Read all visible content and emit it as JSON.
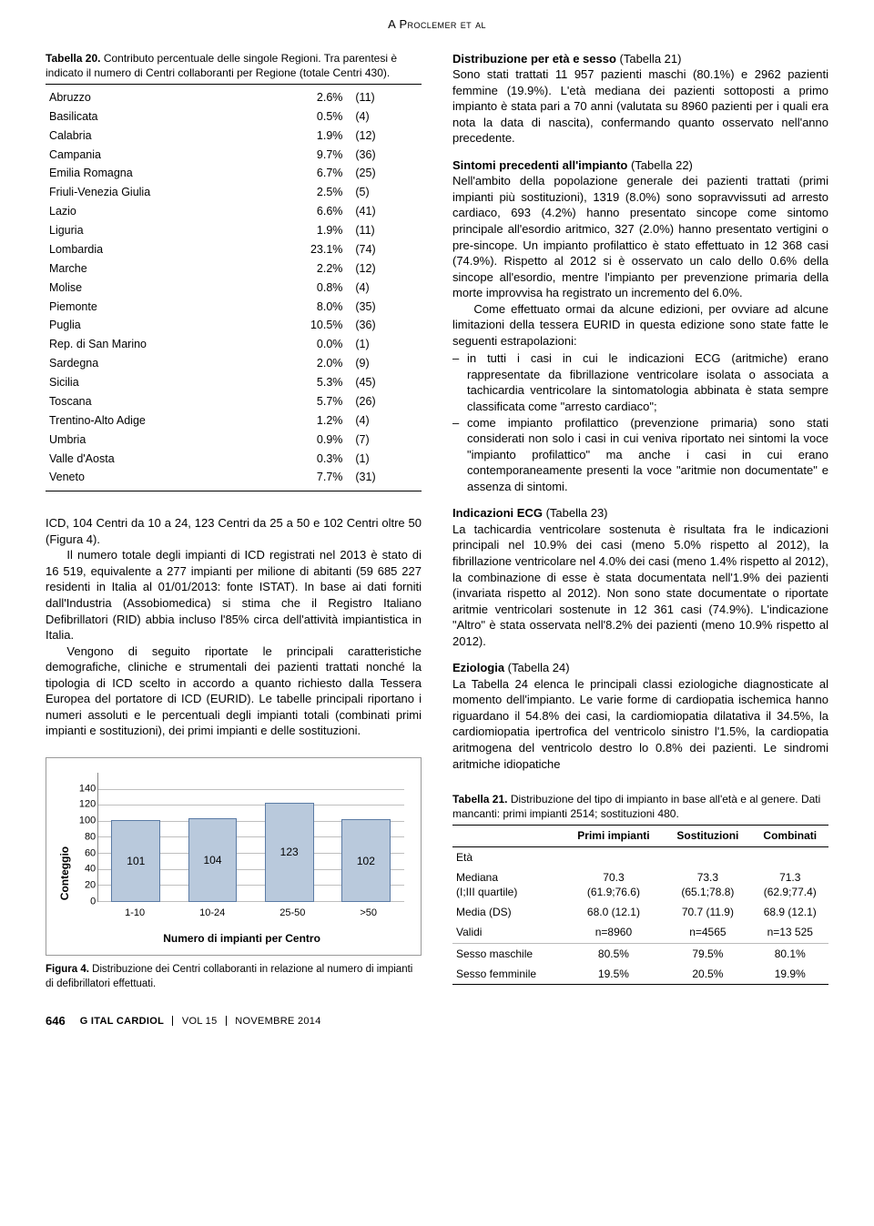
{
  "running_head": "A Proclemer et al",
  "left": {
    "table20": {
      "caption_bold": "Tabella 20.",
      "caption_rest": " Contributo percentuale delle singole Regioni. Tra parentesi è indicato il numero di Centri collaboranti per Regione (totale Centri 430).",
      "rows": [
        {
          "region": "Abruzzo",
          "pct": "2.6%",
          "n": "(11)"
        },
        {
          "region": "Basilicata",
          "pct": "0.5%",
          "n": "(4)"
        },
        {
          "region": "Calabria",
          "pct": "1.9%",
          "n": "(12)"
        },
        {
          "region": "Campania",
          "pct": "9.7%",
          "n": "(36)"
        },
        {
          "region": "Emilia Romagna",
          "pct": "6.7%",
          "n": "(25)"
        },
        {
          "region": "Friuli-Venezia Giulia",
          "pct": "2.5%",
          "n": "(5)"
        },
        {
          "region": "Lazio",
          "pct": "6.6%",
          "n": "(41)"
        },
        {
          "region": "Liguria",
          "pct": "1.9%",
          "n": "(11)"
        },
        {
          "region": "Lombardia",
          "pct": "23.1%",
          "n": "(74)"
        },
        {
          "region": "Marche",
          "pct": "2.2%",
          "n": "(12)"
        },
        {
          "region": "Molise",
          "pct": "0.8%",
          "n": "(4)"
        },
        {
          "region": "Piemonte",
          "pct": "8.0%",
          "n": "(35)"
        },
        {
          "region": "Puglia",
          "pct": "10.5%",
          "n": "(36)"
        },
        {
          "region": "Rep. di San Marino",
          "pct": "0.0%",
          "n": "(1)"
        },
        {
          "region": "Sardegna",
          "pct": "2.0%",
          "n": "(9)"
        },
        {
          "region": "Sicilia",
          "pct": "5.3%",
          "n": "(45)"
        },
        {
          "region": "Toscana",
          "pct": "5.7%",
          "n": "(26)"
        },
        {
          "region": "Trentino-Alto Adige",
          "pct": "1.2%",
          "n": "(4)"
        },
        {
          "region": "Umbria",
          "pct": "0.9%",
          "n": "(7)"
        },
        {
          "region": "Valle d'Aosta",
          "pct": "0.3%",
          "n": "(1)"
        },
        {
          "region": "Veneto",
          "pct": "7.7%",
          "n": "(31)"
        }
      ]
    },
    "para1": "ICD, 104 Centri da 10 a 24, 123 Centri da 25 a 50 e 102 Centri oltre 50 (Figura 4).",
    "para2": "Il numero totale degli impianti di ICD registrati nel 2013 è stato di 16 519, equivalente a 277 impianti per milione di abitanti (59 685 227 residenti in Italia al 01/01/2013: fonte ISTAT). In base ai dati forniti dall'Industria (Assobiomedica) si stima che il Registro Italiano Defibrillatori (RID) abbia incluso l'85% circa dell'attività impiantistica in Italia.",
    "para3": "Vengono di seguito riportate le principali caratteristiche demografiche, cliniche e strumentali dei pazienti trattati nonché la tipologia di ICD scelto in accordo a quanto richiesto dalla Tessera Europea del portatore di ICD (EURID). Le tabelle principali riportano i numeri assoluti e le percentuali degli impianti totali (combinati primi impianti e sostituzioni), dei primi impianti e delle sostituzioni.",
    "chart": {
      "type": "bar",
      "ylabel": "Conteggio",
      "xtitle": "Numero di impianti per Centro",
      "ylim_max": 160,
      "yticks": [
        0,
        20,
        40,
        60,
        80,
        100,
        120,
        140
      ],
      "categories": [
        "1-10",
        "10-24",
        "25-50",
        ">50"
      ],
      "values": [
        101,
        104,
        123,
        102
      ],
      "bar_color": "#b9c9dc",
      "bar_border": "#5b7ba5",
      "grid_color": "#bfbfbf",
      "bg": "#ffffff"
    },
    "fig_caption_bold": "Figura 4.",
    "fig_caption_rest": " Distribuzione dei Centri collaboranti in relazione al numero di impianti di defibrillatori effettuati."
  },
  "right": {
    "s1_head": "Distribuzione per età e sesso",
    "s1_ref": " (Tabella 21)",
    "s1_body": "Sono stati trattati 11 957 pazienti maschi (80.1%) e 2962 pazienti femmine (19.9%). L'età mediana dei pazienti sottoposti a primo impianto è stata pari a 70 anni (valutata su 8960 pazienti per i quali era nota la data di nascita), confermando quanto osservato nell'anno precedente.",
    "s2_head": "Sintomi precedenti all'impianto",
    "s2_ref": " (Tabella 22)",
    "s2_body1": "Nell'ambito della popolazione generale dei pazienti trattati (primi impianti più sostituzioni), 1319 (8.0%) sono sopravvissuti ad arresto cardiaco, 693 (4.2%) hanno presentato sincope come sintomo principale all'esordio aritmico, 327 (2.0%) hanno presentato vertigini o pre-sincope. Un impianto profilattico è stato effettuato in 12 368 casi (74.9%). Rispetto al 2012 si è osservato un calo dello 0.6% della sincope all'esordio, mentre l'impianto per prevenzione primaria della morte improvvisa ha registrato un incremento del 6.0%.",
    "s2_body2": "Come effettuato ormai da alcune edizioni, per ovviare ad alcune limitazioni della tessera EURID in questa edizione sono state fatte le seguenti estrapolazioni:",
    "s2_li1": "in tutti i casi in cui le indicazioni ECG (aritmiche) erano rappresentate da fibrillazione ventricolare isolata o associata a tachicardia ventricolare la sintomatologia abbinata è stata sempre classificata come \"arresto cardiaco\";",
    "s2_li2": "come impianto profilattico (prevenzione primaria) sono stati considerati non solo i casi in cui veniva riportato nei sintomi la voce \"impianto profilattico\" ma anche i casi in cui erano contemporaneamente presenti la voce \"aritmie non documentate\" e assenza di sintomi.",
    "s3_head": "Indicazioni ECG",
    "s3_ref": " (Tabella 23)",
    "s3_body": "La tachicardia ventricolare sostenuta è risultata fra le indicazioni principali nel 10.9% dei casi (meno 5.0% rispetto al 2012), la fibrillazione ventricolare nel 4.0% dei casi (meno 1.4% rispetto al 2012), la combinazione di esse è stata documentata nell'1.9% dei pazienti (invariata rispetto al 2012). Non sono state documentate o riportate aritmie ventricolari sostenute in 12 361 casi (74.9%). L'indicazione \"Altro\" è stata osservata nell'8.2% dei pazienti (meno 10.9% rispetto al 2012).",
    "s4_head": "Eziologia",
    "s4_ref": " (Tabella 24)",
    "s4_body": "La Tabella 24 elenca le principali classi eziologiche diagnosticate al momento dell'impianto. Le varie forme di cardiopatia ischemica hanno riguardano il 54.8% dei casi, la cardiomiopatia dilatativa il 34.5%, la cardiomiopatia ipertrofica del ventricolo sinistro l'1.5%, la cardiopatia aritmogena del ventricolo destro lo 0.8% dei pazienti. Le sindromi aritmiche idiopatiche",
    "table21": {
      "caption_bold": "Tabella 21.",
      "caption_rest": " Distribuzione del tipo di impianto in base all'età e al genere. Dati mancanti: primi impianti 2514; sostituzioni 480.",
      "head": [
        "",
        "Primi impianti",
        "Sostituzioni",
        "Combinati"
      ],
      "rows": [
        {
          "label": "Età",
          "cells": [
            "",
            "",
            ""
          ],
          "is_group": true
        },
        {
          "label": "Mediana (I;III quartile)",
          "cells": [
            "70.3 (61.9;76.6)",
            "73.3 (65.1;78.8)",
            "71.3 (62.9;77.4)"
          ],
          "sub": true,
          "twoLine": true
        },
        {
          "label": "Media (DS)",
          "cells": [
            "68.0 (12.1)",
            "70.7 (11.9)",
            "68.9 (12.1)"
          ],
          "sub": true
        },
        {
          "label": "Validi",
          "cells": [
            "n=8960",
            "n=4565",
            "n=13 525"
          ],
          "sub": true
        },
        {
          "label": "Sesso maschile",
          "cells": [
            "80.5%",
            "79.5%",
            "80.1%"
          ],
          "rule": true
        },
        {
          "label": "Sesso femminile",
          "cells": [
            "19.5%",
            "20.5%",
            "19.9%"
          ]
        }
      ]
    }
  },
  "footer": {
    "page": "646",
    "journal": "G ITAL CARDIOL",
    "vol": "VOL 15",
    "issue": "NOVEMBRE 2014"
  }
}
